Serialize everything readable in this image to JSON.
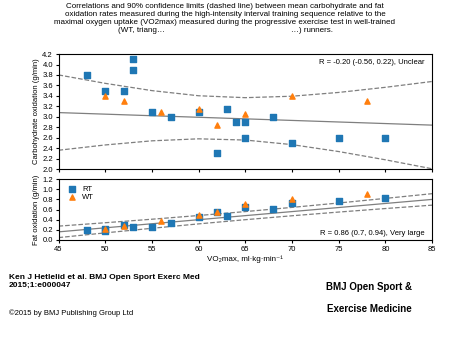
{
  "title": "Correlations and 90% confidence limits (dashed line) between mean carbohydrate and fat\noxidation rates measured during the high-intensity interval training sequence relative to the\nmaximal oxygen uptake (VO2max) measured during the progressive exercise test in well-trained\n(WT, triang…                                                        …) runners.",
  "annotations": [
    "Ken J Hetlelid et al. BMJ Open Sport Exerc Med\n2015;1:e000047",
    "©2015 by BMJ Publishing Group Ltd",
    "BMJ Open Sport &",
    "Exercise Medicine"
  ],
  "chart_data": [
    {
      "type": "scatter",
      "ylabel": "Carbohydrate oxidation (g/min)",
      "xlim": [
        45,
        85
      ],
      "ylim": [
        2.0,
        4.2
      ],
      "xticks": [
        45,
        50,
        55,
        60,
        65,
        70,
        75,
        80,
        85
      ],
      "yticks": [
        2.0,
        2.2,
        2.4,
        2.6,
        2.8,
        3.0,
        3.2,
        3.4,
        3.6,
        3.8,
        4.0,
        4.2
      ],
      "tick_labels": "y",
      "annotations": [
        "R = -0.20 (-0.56, 0.22), Unclear"
      ],
      "series": [
        {
          "name": "RT",
          "marker": "square",
          "x": [
            48,
            50,
            52,
            53,
            53,
            55,
            57,
            60,
            62,
            63,
            64,
            65,
            65,
            68,
            70,
            75,
            80
          ],
          "values": [
            3.8,
            3.5,
            3.5,
            4.1,
            3.9,
            3.1,
            3.0,
            3.1,
            2.3,
            3.15,
            2.9,
            2.9,
            2.6,
            3.0,
            2.5,
            2.6,
            2.6
          ]
        },
        {
          "name": "WT",
          "marker": "triangle",
          "x": [
            50,
            52,
            56,
            60,
            62,
            65,
            70,
            78
          ],
          "values": [
            3.4,
            3.3,
            3.1,
            3.15,
            2.85,
            3.05,
            3.4,
            3.3
          ]
        },
        {
          "type": "line",
          "line_style": "solid",
          "color": "#7f7f7f",
          "x": [
            45,
            50,
            55,
            60,
            65,
            70,
            75,
            80,
            85
          ],
          "values": [
            3.08,
            3.05,
            3.02,
            2.99,
            2.96,
            2.93,
            2.9,
            2.87,
            2.84
          ]
        },
        {
          "type": "line",
          "line_style": "dashed",
          "color": "#7f7f7f",
          "x": [
            45,
            50,
            55,
            60,
            65,
            70,
            75,
            80,
            85
          ],
          "values": [
            3.8011,
            3.6397,
            3.5007,
            3.4023,
            3.3655,
            3.3931,
            3.4657,
            3.5636,
            3.6753
          ]
        },
        {
          "type": "line",
          "line_style": "dashed",
          "color": "#7f7f7f",
          "x": [
            45,
            50,
            55,
            60,
            65,
            70,
            75,
            80,
            85
          ],
          "values": [
            2.3589,
            2.4603,
            2.5393,
            2.5777,
            2.5545,
            2.4669,
            2.3343,
            2.1764,
            2.0047
          ]
        }
      ]
    },
    {
      "type": "scatter",
      "xlabel": "VO₂max, ml·kg·min⁻¹",
      "ylabel": "Fat oxidation (g/min)",
      "xlim": [
        45,
        85
      ],
      "ylim": [
        0.0,
        1.2
      ],
      "xticks": [
        45,
        50,
        55,
        60,
        65,
        70,
        75,
        80,
        85
      ],
      "yticks": [
        0.0,
        0.2,
        0.4,
        0.6,
        0.8,
        1.0,
        1.2
      ],
      "legend": "upper left",
      "annotations": [
        "R = 0.86 (0.7, 0.94), Very large"
      ],
      "series": [
        {
          "name": "RT",
          "marker": "square",
          "x": [
            48,
            50,
            50,
            52,
            53,
            55,
            57,
            60,
            62,
            63,
            65,
            68,
            70,
            75,
            80
          ],
          "values": [
            0.2,
            0.21,
            0.18,
            0.3,
            0.26,
            0.25,
            0.33,
            0.45,
            0.55,
            0.48,
            0.65,
            0.62,
            0.72,
            0.76,
            0.82
          ]
        },
        {
          "name": "WT",
          "marker": "triangle",
          "x": [
            50,
            52,
            56,
            60,
            62,
            65,
            70,
            78
          ],
          "values": [
            0.22,
            0.28,
            0.38,
            0.5,
            0.55,
            0.7,
            0.8,
            0.9
          ]
        },
        {
          "type": "line",
          "line_style": "solid",
          "color": "#7f7f7f",
          "x": [
            45,
            50,
            55,
            60,
            65,
            70,
            75,
            80,
            85
          ],
          "values": [
            0.16,
            0.24,
            0.32,
            0.4,
            0.48,
            0.56,
            0.64,
            0.72,
            0.8
          ]
        },
        {
          "type": "line",
          "line_style": "dashed",
          "color": "#7f7f7f",
          "x": [
            45,
            50,
            55,
            60,
            65,
            70,
            75,
            80,
            85
          ],
          "values": [
            0.2731,
            0.34,
            0.4094,
            0.4825,
            0.56,
            0.6425,
            0.7294,
            0.82,
            0.9131
          ]
        },
        {
          "type": "line",
          "line_style": "dashed",
          "color": "#7f7f7f",
          "x": [
            45,
            50,
            55,
            60,
            65,
            70,
            75,
            80,
            85
          ],
          "values": [
            0.0469,
            0.14,
            0.2306,
            0.3175,
            0.4,
            0.4775,
            0.5506,
            0.62,
            0.6869
          ]
        }
      ]
    }
  ]
}
